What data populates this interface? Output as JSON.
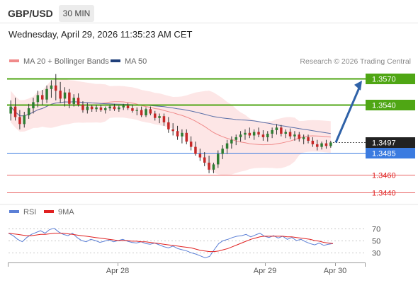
{
  "header": {
    "symbol": "GBP/USD",
    "timeframe": "30 MIN",
    "datetime": "Wednesday, April 29, 2026 11:35:23 AM CET"
  },
  "legend": {
    "items": [
      {
        "label": "MA 20 + Bollinger Bands",
        "color": "#f08a8a"
      },
      {
        "label": "MA 50",
        "color": "#1f3f7a"
      }
    ],
    "credit": "Research © 2026 Trading Central"
  },
  "rsi_legend": {
    "items": [
      {
        "label": "RSI",
        "color": "#5b7fd6"
      },
      {
        "label": "9MA",
        "color": "#e02020"
      }
    ]
  },
  "chart_data": [
    {
      "type": "candlestick",
      "symbol": "GBP/USD",
      "timeframe": "30 MIN",
      "x_ticks": [
        "Apr 28",
        "Apr 29",
        "Apr 30"
      ],
      "ylim": [
        1.3432,
        1.3582
      ],
      "overlays": [
        "MA 20 + Bollinger Bands",
        "MA 50"
      ],
      "current_price": "1.3497",
      "levels": [
        {
          "value": "1.3570",
          "kind": "target",
          "color": "#4fa614",
          "style": "filled"
        },
        {
          "value": "1.3540",
          "kind": "target",
          "color": "#4fa614",
          "style": "filled"
        },
        {
          "value": "1.3485",
          "kind": "pivot",
          "color": "#3b7be0",
          "style": "filled"
        },
        {
          "value": "1.3460",
          "kind": "support",
          "color": "#e02020",
          "style": "text"
        },
        {
          "value": "1.3440",
          "kind": "support",
          "color": "#e02020",
          "style": "text"
        }
      ],
      "arrow": {
        "from_price": 1.3497,
        "to_price": 1.357,
        "color": "#2f62a8"
      },
      "candles": [
        [
          1.353,
          1.3545,
          1.3522,
          1.3538
        ],
        [
          1.3538,
          1.3548,
          1.3522,
          1.3526
        ],
        [
          1.3526,
          1.3534,
          1.3512,
          1.3518
        ],
        [
          1.3518,
          1.3532,
          1.3514,
          1.3528
        ],
        [
          1.3528,
          1.3541,
          1.3524,
          1.3536
        ],
        [
          1.3536,
          1.3548,
          1.353,
          1.3543
        ],
        [
          1.3543,
          1.3556,
          1.3537,
          1.3551
        ],
        [
          1.3551,
          1.3557,
          1.354,
          1.3546
        ],
        [
          1.3546,
          1.3562,
          1.3542,
          1.3558
        ],
        [
          1.3558,
          1.3568,
          1.3548,
          1.3562
        ],
        [
          1.3562,
          1.3575,
          1.3545,
          1.3556
        ],
        [
          1.3556,
          1.3566,
          1.3542,
          1.3547
        ],
        [
          1.3547,
          1.356,
          1.3538,
          1.3554
        ],
        [
          1.3554,
          1.3558,
          1.3536,
          1.3541
        ],
        [
          1.3541,
          1.3552,
          1.3538,
          1.3548
        ],
        [
          1.3548,
          1.3553,
          1.3538,
          1.354
        ],
        [
          1.354,
          1.3544,
          1.3531,
          1.3534
        ],
        [
          1.3534,
          1.3542,
          1.353,
          1.3538
        ],
        [
          1.3538,
          1.354,
          1.3532,
          1.3535
        ],
        [
          1.3535,
          1.354,
          1.3532,
          1.3537
        ],
        [
          1.3537,
          1.354,
          1.3532,
          1.3534
        ],
        [
          1.3534,
          1.3538,
          1.353,
          1.3536
        ],
        [
          1.3536,
          1.354,
          1.3533,
          1.3538
        ],
        [
          1.3538,
          1.3541,
          1.3533,
          1.3535
        ],
        [
          1.3535,
          1.3539,
          1.3532,
          1.3537
        ],
        [
          1.3537,
          1.3541,
          1.3534,
          1.3539
        ],
        [
          1.3539,
          1.3542,
          1.3534,
          1.3536
        ],
        [
          1.3536,
          1.354,
          1.3531,
          1.3533
        ],
        [
          1.3533,
          1.3537,
          1.3528,
          1.3534
        ],
        [
          1.3534,
          1.3538,
          1.3526,
          1.3528
        ],
        [
          1.3528,
          1.3537,
          1.3526,
          1.3535
        ],
        [
          1.3535,
          1.3538,
          1.3528,
          1.353
        ],
        [
          1.353,
          1.3533,
          1.3522,
          1.3525
        ],
        [
          1.3525,
          1.353,
          1.3519,
          1.3527
        ],
        [
          1.3527,
          1.353,
          1.3516,
          1.352
        ],
        [
          1.352,
          1.3526,
          1.3508,
          1.3512
        ],
        [
          1.3512,
          1.3519,
          1.3505,
          1.351
        ],
        [
          1.351,
          1.3516,
          1.35,
          1.3504
        ],
        [
          1.3504,
          1.3512,
          1.3496,
          1.3508
        ],
        [
          1.3508,
          1.3512,
          1.3495,
          1.3498
        ],
        [
          1.3498,
          1.3504,
          1.3488,
          1.3492
        ],
        [
          1.3492,
          1.3498,
          1.3482,
          1.3484
        ],
        [
          1.3484,
          1.349,
          1.3476,
          1.348
        ],
        [
          1.348,
          1.3486,
          1.347,
          1.3474
        ],
        [
          1.3474,
          1.3482,
          1.3462,
          1.3466
        ],
        [
          1.3466,
          1.3474,
          1.3462,
          1.3472
        ],
        [
          1.3472,
          1.3488,
          1.3468,
          1.3484
        ],
        [
          1.3484,
          1.3494,
          1.3478,
          1.349
        ],
        [
          1.349,
          1.35,
          1.3484,
          1.3496
        ],
        [
          1.3496,
          1.3504,
          1.349,
          1.35
        ],
        [
          1.35,
          1.3506,
          1.3494,
          1.3503
        ],
        [
          1.3503,
          1.351,
          1.3498,
          1.3506
        ],
        [
          1.3506,
          1.3512,
          1.35,
          1.3508
        ],
        [
          1.3508,
          1.3514,
          1.3502,
          1.3505
        ],
        [
          1.3505,
          1.3512,
          1.35,
          1.3509
        ],
        [
          1.3509,
          1.3514,
          1.3503,
          1.3506
        ],
        [
          1.3506,
          1.3511,
          1.3499,
          1.3503
        ],
        [
          1.3503,
          1.351,
          1.3498,
          1.3507
        ],
        [
          1.3507,
          1.3514,
          1.3502,
          1.3511
        ],
        [
          1.3511,
          1.3518,
          1.3506,
          1.3514
        ],
        [
          1.3514,
          1.3517,
          1.3504,
          1.3507
        ],
        [
          1.3507,
          1.3512,
          1.3502,
          1.3509
        ],
        [
          1.3509,
          1.3513,
          1.3501,
          1.3504
        ],
        [
          1.3504,
          1.351,
          1.3499,
          1.3506
        ],
        [
          1.3506,
          1.3509,
          1.3498,
          1.3501
        ],
        [
          1.3501,
          1.3506,
          1.3495,
          1.3503
        ],
        [
          1.3503,
          1.3506,
          1.3496,
          1.3499
        ],
        [
          1.3499,
          1.3503,
          1.3492,
          1.3495
        ],
        [
          1.3495,
          1.35,
          1.3488,
          1.3492
        ],
        [
          1.3492,
          1.3498,
          1.3489,
          1.3496
        ],
        [
          1.3496,
          1.35,
          1.349,
          1.3493
        ],
        [
          1.3493,
          1.3499,
          1.3491,
          1.3497
        ]
      ]
    },
    {
      "type": "line",
      "title": "RSI",
      "series": [
        {
          "name": "RSI",
          "color": "#5b7fd6"
        },
        {
          "name": "9MA",
          "color": "#e02020"
        }
      ],
      "y_ticks": [
        "70",
        "50",
        "30"
      ],
      "ylim": [
        20,
        80
      ],
      "rsi": [
        62,
        58,
        52,
        48,
        55,
        60,
        63,
        66,
        62,
        68,
        70,
        64,
        60,
        58,
        62,
        55,
        50,
        48,
        52,
        50,
        47,
        49,
        51,
        48,
        50,
        52,
        49,
        47,
        46,
        48,
        45,
        44,
        46,
        43,
        40,
        38,
        41,
        37,
        35,
        33,
        30,
        28,
        25,
        22,
        24,
        35,
        45,
        50,
        52,
        55,
        57,
        58,
        60,
        56,
        59,
        62,
        57,
        55,
        58,
        54,
        57,
        52,
        55,
        50,
        52,
        48,
        45,
        43,
        46,
        42,
        44,
        45
      ],
      "rsi_9ma": [
        62,
        61,
        60,
        59,
        58,
        58,
        59,
        60,
        60,
        61,
        62,
        62,
        62,
        61,
        60,
        59,
        58,
        57,
        56,
        55,
        54,
        53,
        52,
        51,
        50,
        50,
        50,
        49,
        49,
        48,
        48,
        47,
        46,
        45,
        44,
        43,
        42,
        41,
        40,
        39,
        38,
        36,
        34,
        33,
        32,
        32,
        33,
        35,
        37,
        40,
        43,
        46,
        49,
        52,
        54,
        56,
        57,
        57,
        57,
        57,
        57,
        56,
        56,
        55,
        54,
        53,
        52,
        50,
        49,
        47,
        46,
        45
      ]
    }
  ]
}
